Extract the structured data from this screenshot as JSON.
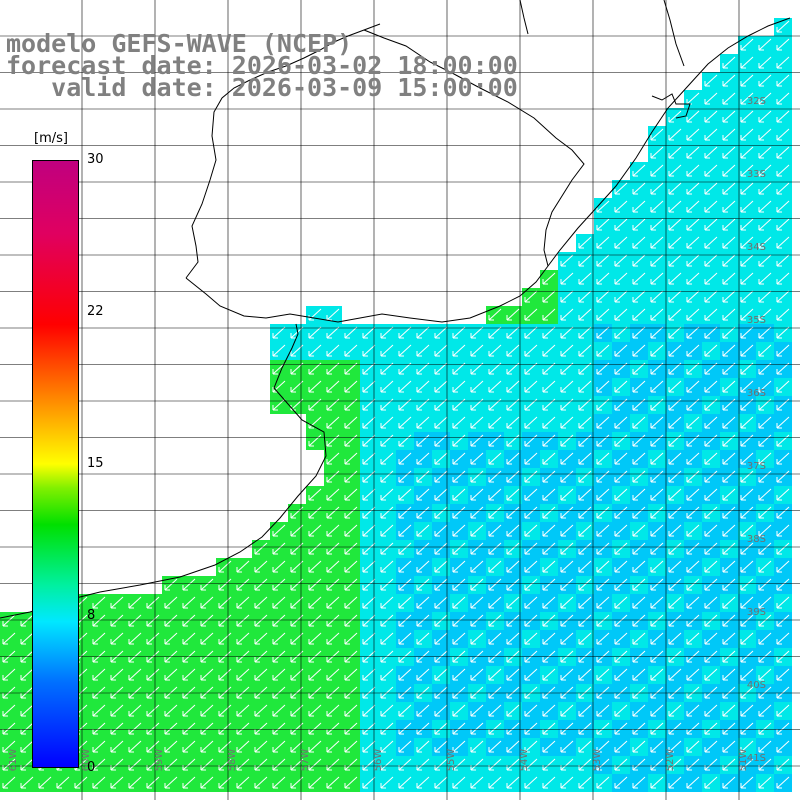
{
  "title": {
    "line1": "modelo GEFS-WAVE (NCEP)",
    "line2": "forecast date: 2026-03-02 18:00:00",
    "line3": "   valid date: 2026-03-09 15:00:00"
  },
  "colorbar": {
    "unit": "[m/s]",
    "ticks": [
      "30",
      "22",
      "15",
      "8",
      "0"
    ],
    "range": [
      0,
      30
    ]
  },
  "axes": {
    "lat_labels": [
      "32S",
      "33S",
      "34S",
      "35S",
      "36S",
      "37S",
      "38S",
      "39S",
      "40S",
      "41S"
    ],
    "lon_labels": [
      "61W",
      "60W",
      "59W",
      "58W",
      "57W",
      "56W",
      "55W",
      "54W",
      "53W",
      "52W",
      "51W"
    ]
  },
  "colors": {
    "land": "#ffffff",
    "grid": "#000000",
    "coast": "#000000",
    "vector": "#ffffff",
    "green": "#20e83c",
    "cyan": "#00e8e8",
    "blue": "#00c8f8"
  },
  "field": {
    "parameter": "wind speed",
    "typical_speed_ms": [
      8,
      12
    ],
    "direction": "from north-east"
  }
}
